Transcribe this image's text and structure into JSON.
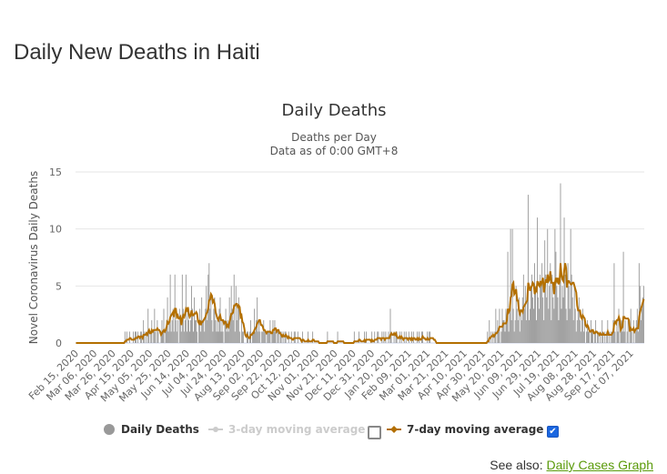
{
  "page": {
    "title": "Daily New Deaths in Haiti",
    "see_also_label": "See also:",
    "see_also_link": "Daily Cases Graph"
  },
  "colors": {
    "bars": "#999999",
    "ma7": "#b36f00",
    "ma3_disabled": "#cccccc",
    "grid": "#e6e6e6",
    "link": "#5a9a0a"
  },
  "chart_data": {
    "type": "bar",
    "title": "Daily Deaths",
    "subtitle_lines": [
      "Deaths per Day",
      "Data as of 0:00 GMT+8"
    ],
    "ylabel": "Novel Coronavirus Daily Deaths",
    "xlabel": "",
    "ylim": [
      0,
      15
    ],
    "yticks": [
      0,
      5,
      10,
      15
    ],
    "grid": true,
    "legend_placement": "bottom",
    "start_date": "2020-02-15",
    "xtick_labels": [
      "Feb 15, 2020",
      "Mar 06, 2020",
      "Mar 26, 2020",
      "Apr 15, 2020",
      "May 05, 2020",
      "May 25, 2020",
      "Jun 14, 2020",
      "Jul 04, 2020",
      "Jul 24, 2020",
      "Aug 13, 2020",
      "Sep 02, 2020",
      "Sep 22, 2020",
      "Oct 12, 2020",
      "Nov 01, 2020",
      "Nov 21, 2020",
      "Dec 11, 2020",
      "Dec 31, 2020",
      "Jan 20, 2021",
      "Feb 09, 2021",
      "Mar 01, 2021",
      "Mar 21, 2021",
      "Apr 10, 2021",
      "Apr 30, 2021",
      "May 20, 2021",
      "Jun 09, 2021",
      "Jun 29, 2021",
      "Jul 19, 2021",
      "Aug 08, 2021",
      "Aug 28, 2021",
      "Sep 17, 2021",
      "Oct 07, 2021"
    ],
    "legend": [
      {
        "name": "Daily Deaths",
        "enabled": true
      },
      {
        "name": "3-day moving average",
        "enabled": false
      },
      {
        "name": "7-day moving average",
        "enabled": true
      }
    ],
    "series": [
      {
        "name": "Daily Deaths",
        "values": [
          0,
          0,
          0,
          0,
          0,
          0,
          0,
          0,
          0,
          0,
          0,
          0,
          0,
          0,
          0,
          0,
          0,
          0,
          0,
          0,
          0,
          0,
          0,
          0,
          0,
          0,
          0,
          0,
          0,
          0,
          0,
          0,
          0,
          0,
          0,
          0,
          0,
          0,
          0,
          0,
          0,
          0,
          0,
          0,
          0,
          0,
          0,
          0,
          0,
          0,
          0,
          0,
          0,
          1,
          0,
          1,
          0,
          0,
          1,
          0,
          0,
          0,
          1,
          0,
          1,
          1,
          0,
          1,
          0,
          0,
          1,
          1,
          0,
          2,
          1,
          0,
          1,
          0,
          3,
          1,
          0,
          1,
          2,
          0,
          1,
          3,
          1,
          0,
          2,
          1,
          0,
          0,
          1,
          2,
          1,
          3,
          0,
          1,
          2,
          4,
          1,
          2,
          6,
          1,
          2,
          3,
          1,
          6,
          2,
          1,
          2,
          0,
          3,
          2,
          1,
          6,
          3,
          1,
          2,
          6,
          1,
          3,
          2,
          1,
          2,
          5,
          3,
          1,
          4,
          2,
          2,
          1,
          0,
          2,
          3,
          1,
          4,
          2,
          2,
          1,
          3,
          5,
          2,
          6,
          7,
          3,
          4,
          2,
          1,
          3,
          4,
          2,
          1,
          2,
          1,
          3,
          4,
          1,
          2,
          1,
          0,
          2,
          3,
          1,
          2,
          1,
          4,
          2,
          5,
          3,
          2,
          6,
          1,
          5,
          2,
          3,
          4,
          1,
          0,
          2,
          1,
          1,
          0,
          0,
          0,
          1,
          1,
          0,
          1,
          2,
          0,
          1,
          1,
          3,
          1,
          2,
          4,
          1,
          2,
          1,
          0,
          1,
          1,
          2,
          1,
          1,
          0,
          1,
          1,
          1,
          2,
          0,
          1,
          2,
          1,
          2,
          1,
          0,
          1,
          1,
          0,
          1,
          1,
          0,
          1,
          0,
          1,
          1,
          0,
          0,
          1,
          0,
          0,
          1,
          0,
          0,
          1,
          1,
          0,
          0,
          1,
          0,
          0,
          0,
          0,
          1,
          0,
          0,
          0,
          0,
          0,
          1,
          0,
          0,
          0,
          0,
          1,
          0,
          0,
          0,
          0,
          0,
          0,
          0,
          0,
          0,
          0,
          0,
          0,
          0,
          0,
          0,
          1,
          0,
          0,
          0,
          0,
          0,
          0,
          0,
          0,
          0,
          0,
          1,
          0,
          0,
          0,
          0,
          0,
          0,
          0,
          0,
          0,
          0,
          0,
          0,
          0,
          0,
          0,
          0,
          0,
          1,
          0,
          0,
          0,
          0,
          1,
          0,
          0,
          0,
          0,
          0,
          1,
          0,
          1,
          0,
          0,
          0,
          0,
          0,
          1,
          0,
          0,
          1,
          0,
          0,
          1,
          1,
          0,
          0,
          0,
          1,
          0,
          1,
          0,
          1,
          0,
          0,
          1,
          0,
          3,
          1,
          0,
          0,
          1,
          0,
          1,
          1,
          0,
          0,
          1,
          0,
          1,
          0,
          0,
          1,
          0,
          1,
          0,
          0,
          1,
          0,
          0,
          1,
          0,
          1,
          0,
          0,
          0,
          1,
          0,
          1,
          0,
          0,
          1,
          1,
          0,
          0,
          0,
          0,
          1,
          0,
          1,
          1,
          0,
          0,
          0,
          0,
          0,
          0,
          0,
          0,
          0,
          0,
          0,
          0,
          0,
          0,
          0,
          0,
          0,
          0,
          0,
          0,
          0,
          0,
          0,
          0,
          0,
          0,
          0,
          0,
          0,
          0,
          0,
          0,
          0,
          0,
          0,
          0,
          0,
          0,
          0,
          0,
          0,
          0,
          0,
          0,
          0,
          0,
          0,
          0,
          0,
          0,
          0,
          0,
          0,
          0,
          0,
          0,
          0,
          0,
          0,
          0,
          0,
          1,
          0,
          2,
          0,
          1,
          0,
          1,
          0,
          1,
          3,
          0,
          2,
          1,
          3,
          0,
          1,
          3,
          2,
          2,
          1,
          3,
          2,
          8,
          1,
          3,
          10,
          2,
          10,
          3,
          1,
          2,
          5,
          3,
          2,
          4,
          1,
          3,
          2,
          4,
          6,
          3,
          5,
          2,
          4,
          13,
          2,
          3,
          5,
          6,
          4,
          3,
          7,
          5,
          2,
          11,
          4,
          3,
          6,
          5,
          7,
          4,
          2,
          9,
          6,
          4,
          10,
          3,
          5,
          7,
          2,
          6,
          4,
          3,
          10,
          8,
          5,
          4,
          2,
          6,
          14,
          3,
          5,
          4,
          11,
          6,
          3,
          2,
          7,
          5,
          3,
          10,
          6,
          4,
          2,
          5,
          3,
          1,
          2,
          3,
          4,
          2,
          1,
          2,
          3,
          1,
          2,
          0,
          1,
          2,
          1,
          1,
          0,
          2,
          1,
          1,
          0,
          1,
          2,
          0,
          1,
          1,
          0,
          1,
          0,
          2,
          1,
          0,
          1,
          0,
          1,
          2,
          0,
          1,
          0,
          1,
          1,
          2,
          7,
          1,
          0,
          2,
          1,
          3,
          0,
          1,
          2,
          1,
          8,
          1,
          2,
          0,
          1,
          2,
          0,
          1,
          3,
          1,
          0,
          2,
          0,
          1,
          2,
          3,
          1,
          7,
          5,
          2,
          3,
          4,
          5
        ]
      },
      {
        "name": "7-day moving average",
        "derived_from": "Daily Deaths",
        "window": 7
      }
    ]
  }
}
